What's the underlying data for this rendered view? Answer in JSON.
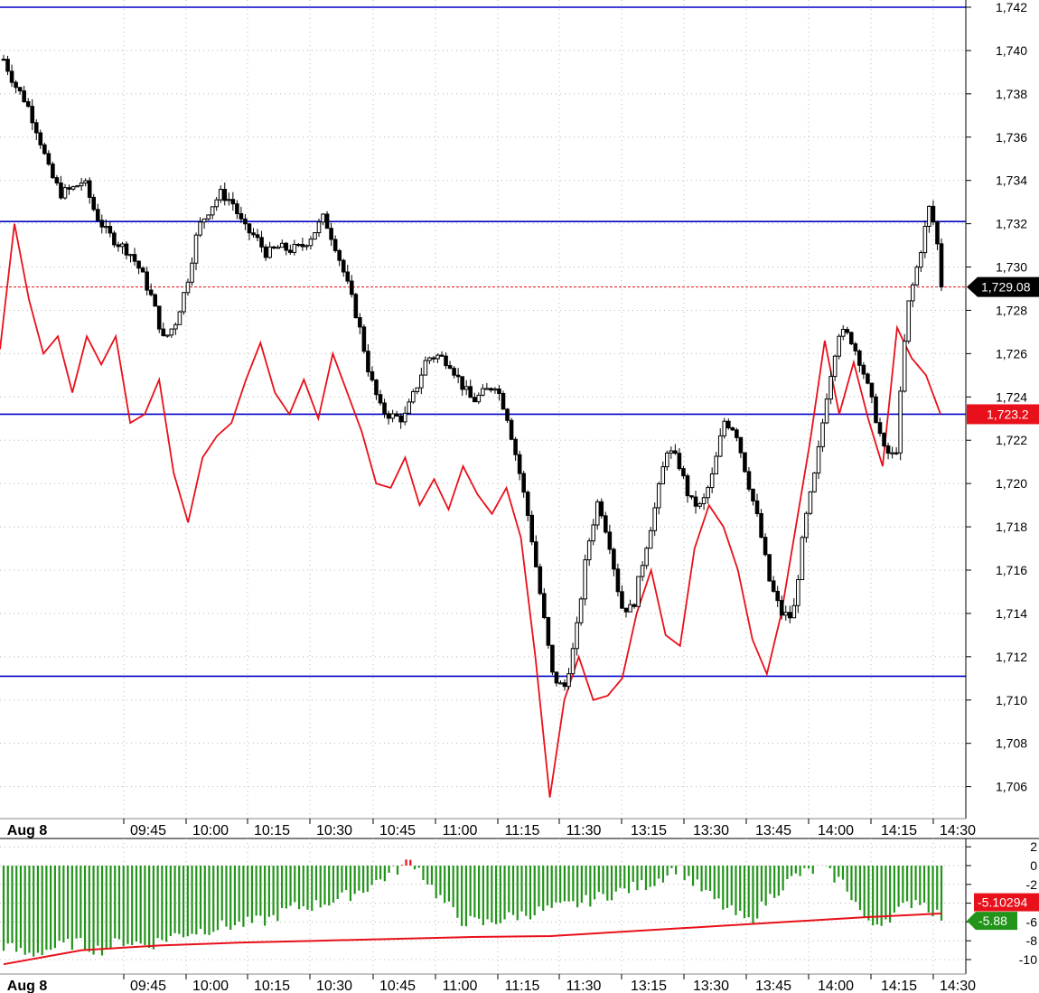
{
  "chart_data": [
    {
      "type": "candlestick",
      "panel": "price",
      "title": "",
      "ylim": [
        1704,
        1742
      ],
      "y_ticks": [
        1706,
        1708,
        1710,
        1712,
        1714,
        1716,
        1718,
        1720,
        1722,
        1724,
        1726,
        1728,
        1730,
        1732,
        1734,
        1736,
        1738,
        1740,
        1742
      ],
      "y_tick_labels": [
        "1,706",
        "1,708",
        "1,710",
        "1,712",
        "1,714",
        "1,716",
        "1,718",
        "1,720",
        "1,722",
        "1,724",
        "1,726",
        "1,728",
        "1,730",
        "1,732",
        "1,734",
        "1,736",
        "1,738",
        "1,740",
        "1,742"
      ],
      "x_labels": [
        "Aug 8",
        "09:45",
        "10:00",
        "10:15",
        "10:30",
        "10:45",
        "11:00",
        "11:15",
        "11:30",
        "13:15",
        "13:30",
        "13:45",
        "14:00",
        "14:15",
        "14:30"
      ],
      "horizontal_lines": [
        1742.0,
        1732.1,
        1723.2,
        1711.1
      ],
      "current_price": 1729.08,
      "current_price_label": "1,729.08",
      "red_line_last_label": "1,723.2",
      "price_path": [
        1739.6,
        1738.4,
        1737.6,
        1736.2,
        1734.4,
        1733.4,
        1733.6,
        1734.0,
        1732.5,
        1731.6,
        1731.1,
        1730.7,
        1729.8,
        1728.5,
        1726.6,
        1727.4,
        1729.2,
        1731.8,
        1732.7,
        1733.4,
        1733.0,
        1731.8,
        1731.4,
        1730.6,
        1730.9,
        1730.8,
        1730.9,
        1731.5,
        1732.3,
        1731.0,
        1729.3,
        1727.5,
        1725.0,
        1723.4,
        1723.1,
        1723.0,
        1724.3,
        1725.8,
        1725.9,
        1725.6,
        1724.6,
        1723.8,
        1724.2,
        1724.6,
        1723.2,
        1720.8,
        1718.1,
        1714.6,
        1711.1,
        1710.5,
        1712.8,
        1716.9,
        1719.3,
        1717.2,
        1714.3,
        1714.2,
        1716.7,
        1719.0,
        1721.6,
        1721.0,
        1719.2,
        1718.9,
        1720.4,
        1722.9,
        1722.5,
        1720.3,
        1718.2,
        1715.4,
        1714.0,
        1713.8,
        1718.0,
        1720.6,
        1724.2,
        1727.0,
        1726.8,
        1725.5,
        1723.6,
        1721.5,
        1721.2,
        1728.0,
        1730.3,
        1732.9,
        1730.0
      ],
      "red_line": [
        1726.2,
        1732.0,
        1728.5,
        1726.0,
        1726.8,
        1724.2,
        1726.8,
        1725.5,
        1726.8,
        1722.8,
        1723.2,
        1724.8,
        1720.5,
        1718.2,
        1721.2,
        1722.2,
        1722.8,
        1724.8,
        1726.5,
        1724.2,
        1723.2,
        1724.8,
        1723.0,
        1726.0,
        1724.2,
        1722.4,
        1720.0,
        1719.8,
        1721.2,
        1719.0,
        1720.2,
        1718.8,
        1720.8,
        1719.5,
        1718.6,
        1719.8,
        1717.5,
        1712.0,
        1705.5,
        1710.0,
        1712.0,
        1710.0,
        1710.2,
        1711.0,
        1714.0,
        1716.0,
        1713.0,
        1712.5,
        1717.0,
        1719.0,
        1718.0,
        1716.0,
        1712.8,
        1711.2,
        1714.0,
        1718.0,
        1722.0,
        1726.6,
        1723.2,
        1725.6,
        1723.0,
        1720.8,
        1727.2,
        1725.8,
        1725.0,
        1723.2
      ]
    },
    {
      "type": "bar",
      "panel": "oscillator",
      "ylim": [
        -11,
        3
      ],
      "y_ticks": [
        2,
        0,
        -2,
        -4,
        -6,
        -8,
        -10
      ],
      "y_tick_labels": [
        "2",
        "0",
        "-2",
        "-4",
        "-6",
        "-8",
        "-10"
      ],
      "x_labels": [
        "Aug 8",
        "09:45",
        "10:00",
        "10:15",
        "10:30",
        "10:45",
        "11:00",
        "11:15",
        "11:30",
        "13:15",
        "13:30",
        "13:45",
        "14:00",
        "14:15",
        "14:30"
      ],
      "series": [
        {
          "values_path": [
            -8.5,
            -9.5,
            -8.8,
            -8.2,
            -9.0,
            -8.0,
            -8.5,
            -7.5,
            -7.0,
            -6.5,
            -6.2,
            -5.8,
            -4.5,
            -4.2,
            -3.5,
            -2.5,
            -1.0,
            0.6,
            -3.0,
            -5.8,
            -6.2,
            -5.5,
            -5.0,
            -4.5,
            -4.0,
            -3.2,
            -2.5,
            -1.8,
            -0.2,
            -2.5,
            -4.5,
            -6.0,
            -3.0,
            -1.0,
            -0.3,
            -2.0,
            -6.5,
            -5.2,
            -3.5,
            -5.5
          ]
        },
        {
          "values_path": [
            -10.5,
            -9.0,
            -8.5,
            -8.2,
            -8.0,
            -7.8,
            -7.6,
            -7.5,
            -7.0,
            -6.5,
            -6.0,
            -5.5,
            -5.1
          ]
        }
      ],
      "value_label_red": "-5.10294",
      "value_label_green": "-5.88"
    }
  ],
  "colors": {
    "candle_up": "#ffffff",
    "candle_down": "#000000",
    "red_line": "#e8101a",
    "hline": "#0000c8",
    "histogram": "#22941a",
    "histogram_positive": "#e8101a",
    "flag_black": "#000000",
    "flag_red": "#e8101a",
    "flag_green": "#22941a"
  }
}
